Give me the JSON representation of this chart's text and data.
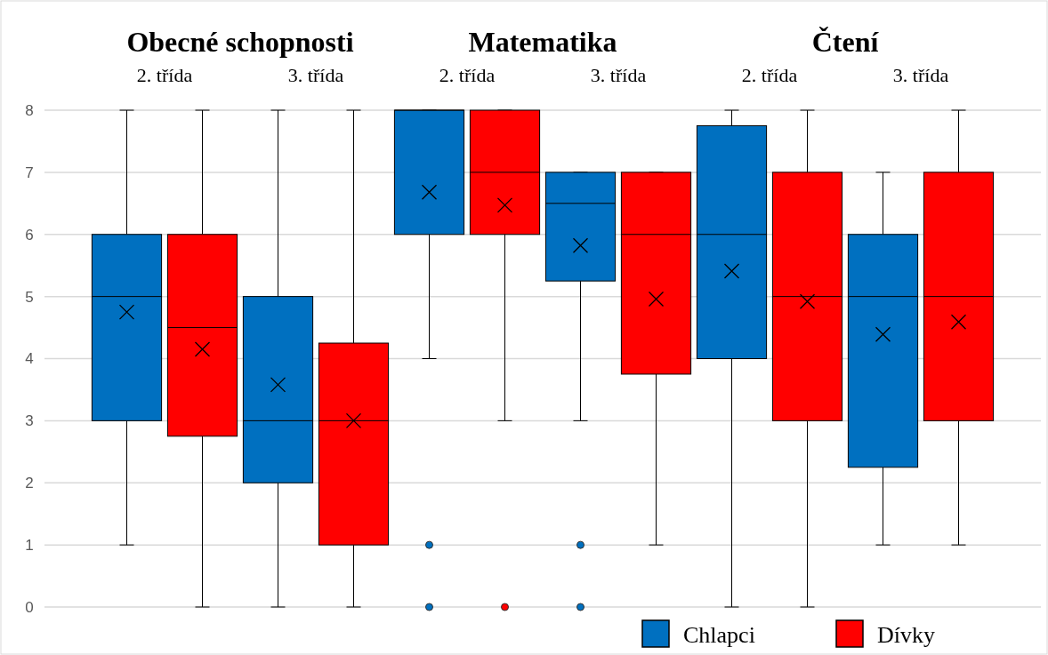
{
  "chart_data": {
    "type": "box",
    "categories": [
      "2. třída",
      "3. třída",
      "2. třída",
      "3. třída",
      "2. třída",
      "3. třída"
    ],
    "annotations": [
      "Obecné schopnosti",
      "Matematika",
      "Čtení"
    ],
    "ylim": [
      0,
      8
    ],
    "yticks": [
      0,
      1,
      2,
      3,
      4,
      5,
      6,
      7,
      8
    ],
    "grid": "y",
    "legend": "bottom right",
    "series": [
      {
        "name": "Chlapci",
        "color": "#0070c0",
        "boxes": [
          {
            "low": 1,
            "q1": 3,
            "median": 5,
            "q3": 6,
            "high": 8,
            "mean": 4.75
          },
          {
            "low": 0,
            "q1": 2,
            "median": 3,
            "q3": 5,
            "high": 8,
            "mean": 3.58
          },
          {
            "low": 4,
            "q1": 6,
            "median": 8,
            "q3": 8,
            "high": 8,
            "mean": 6.68,
            "outliers": [
              1,
              0
            ]
          },
          {
            "low": 3,
            "q1": 5.25,
            "median": 6.5,
            "q3": 7,
            "high": 7,
            "mean": 5.82,
            "outliers": [
              1,
              0
            ]
          },
          {
            "low": 0,
            "q1": 4,
            "median": 6,
            "q3": 7.75,
            "high": 8,
            "mean": 5.41
          },
          {
            "low": 1,
            "q1": 2.25,
            "median": 5,
            "q3": 6,
            "high": 7,
            "mean": 4.39
          }
        ]
      },
      {
        "name": "Dívky",
        "color": "#ff0000",
        "boxes": [
          {
            "low": 0,
            "q1": 2.75,
            "median": 4.5,
            "q3": 6,
            "high": 8,
            "mean": 4.15
          },
          {
            "low": 0,
            "q1": 1,
            "median": 3,
            "q3": 4.25,
            "high": 8,
            "mean": 3.0
          },
          {
            "low": 3,
            "q1": 6,
            "median": 7,
            "q3": 8,
            "high": 8,
            "mean": 6.47,
            "outliers": [
              0
            ]
          },
          {
            "low": 1,
            "q1": 3.75,
            "median": 6,
            "q3": 7,
            "high": 7,
            "mean": 4.96
          },
          {
            "low": 0,
            "q1": 3,
            "median": 5,
            "q3": 7,
            "high": 8,
            "mean": 4.92
          },
          {
            "low": 1,
            "q1": 3,
            "median": 5,
            "q3": 7,
            "high": 8,
            "mean": 4.59
          }
        ]
      }
    ]
  }
}
